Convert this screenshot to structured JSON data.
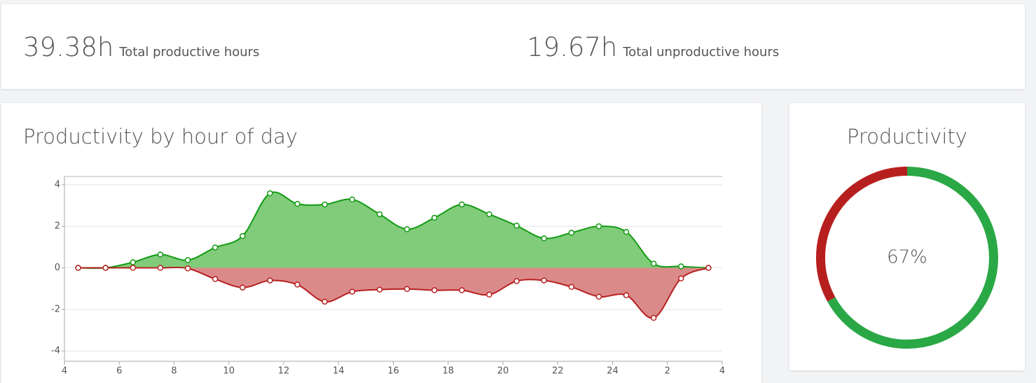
{
  "stats": [
    {
      "value": "39.38h",
      "label": "Total productive hours"
    },
    {
      "value": "19.67h",
      "label": "Total unproductive hours"
    }
  ],
  "chart_data": [
    {
      "type": "area",
      "title": "Productivity by hour of day",
      "x": [
        4.5,
        5.5,
        6.5,
        7.5,
        8.5,
        9.5,
        10.5,
        11.5,
        12.5,
        13.5,
        14.5,
        15.5,
        16.5,
        17.5,
        18.5,
        19.5,
        20.5,
        21.5,
        22.5,
        23.5,
        24.5,
        25.5,
        26.5,
        27.5
      ],
      "series": [
        {
          "color": "#139a13",
          "fill": "#80cc7a",
          "values": [
            0,
            0,
            0.27,
            0.64,
            0.37,
            0.98,
            1.53,
            3.59,
            3.08,
            3.05,
            3.29,
            2.58,
            1.86,
            2.41,
            3.05,
            2.58,
            2.03,
            1.42,
            1.69,
            2.0,
            1.73,
            0.2,
            0.07,
            0
          ]
        },
        {
          "color": "#b81f1f",
          "fill": "#db8a8a",
          "values": [
            0,
            0,
            0,
            0,
            -0.03,
            -0.54,
            -0.95,
            -0.61,
            -0.81,
            -1.63,
            -1.15,
            -1.05,
            -1.02,
            -1.08,
            -1.08,
            -1.29,
            -0.64,
            -0.61,
            -0.92,
            -1.39,
            -1.32,
            -2.41,
            -0.51,
            0
          ]
        }
      ],
      "xlim": [
        4,
        28
      ],
      "xticks": [
        4,
        6,
        8,
        10,
        12,
        14,
        16,
        18,
        20,
        22,
        24,
        {
          "value": 26,
          "label": "2"
        },
        {
          "value": 28,
          "label": "4"
        }
      ],
      "ylim": [
        -4.5,
        4.4
      ],
      "yticks": [
        -4,
        -2,
        0,
        2,
        4
      ],
      "grid": true
    },
    {
      "type": "donut",
      "title": "Productivity",
      "values": [
        67,
        33
      ],
      "colors": [
        "#2aa845",
        "#b71f1f"
      ],
      "center_label": "67%"
    }
  ]
}
